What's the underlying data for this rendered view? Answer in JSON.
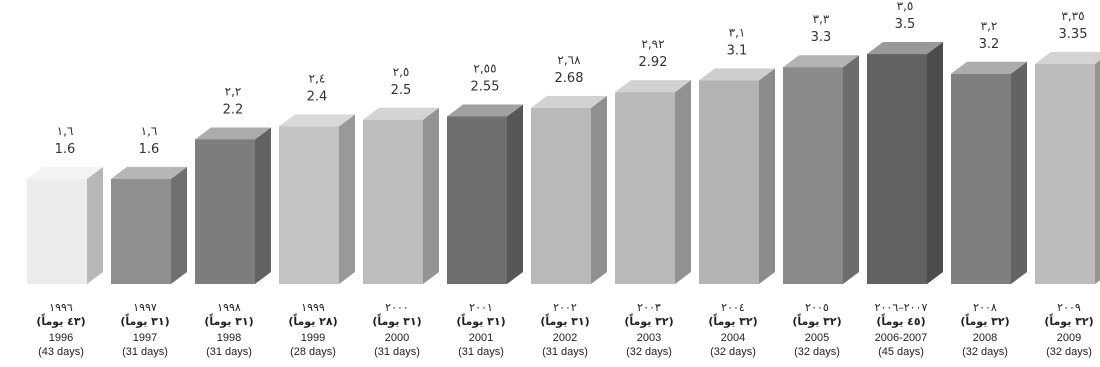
{
  "chart_data": {
    "type": "bar",
    "title": "",
    "xlabel": "",
    "ylabel": "",
    "ylim": [
      0,
      3.5
    ],
    "grid": false,
    "legend": "none",
    "style": "3d-bars",
    "colors": [
      "#ececec",
      "#8f8f8f",
      "#7d7d7d",
      "#c4c4c4",
      "#bdbdbd",
      "#6f6f6f",
      "#b9b9b9",
      "#bababa",
      "#b3b3b3",
      "#8a8a8a",
      "#626262",
      "#7f7f7f",
      "#bcbcbc"
    ],
    "bars": [
      {
        "value": 1.6,
        "value_label": "1.6",
        "value_label_ar": "١,٦",
        "year_ar": "١٩٩٦",
        "days_ar": "(٤٣ يوماً)",
        "year": "1996",
        "days": "(43 days)"
      },
      {
        "value": 1.6,
        "value_label": "1.6",
        "value_label_ar": "١,٦",
        "year_ar": "١٩٩٧",
        "days_ar": "(٣١ يوماً)",
        "year": "1997",
        "days": "(31 days)"
      },
      {
        "value": 2.2,
        "value_label": "2.2",
        "value_label_ar": "٢,٢",
        "year_ar": "١٩٩٨",
        "days_ar": "(٣١ يوماً)",
        "year": "1998",
        "days": "(31 days)"
      },
      {
        "value": 2.4,
        "value_label": "2.4",
        "value_label_ar": "٢,٤",
        "year_ar": "١٩٩٩",
        "days_ar": "(٢٨ يوماً)",
        "year": "1999",
        "days": "(28 days)"
      },
      {
        "value": 2.5,
        "value_label": "2.5",
        "value_label_ar": "٢,٥",
        "year_ar": "٢٠٠٠",
        "days_ar": "(٣١ يوماً)",
        "year": "2000",
        "days": "(31 days)"
      },
      {
        "value": 2.55,
        "value_label": "2.55",
        "value_label_ar": "٢,٥٥",
        "year_ar": "٢٠٠١",
        "days_ar": "(٣١ يوماً)",
        "year": "2001",
        "days": "(31 days)"
      },
      {
        "value": 2.68,
        "value_label": "2.68",
        "value_label_ar": "٢,٦٨",
        "year_ar": "٢٠٠٢",
        "days_ar": "(٣١ يوماً)",
        "year": "2002",
        "days": "(31 days)"
      },
      {
        "value": 2.92,
        "value_label": "2.92",
        "value_label_ar": "٢,٩٢",
        "year_ar": "٢٠٠٣",
        "days_ar": "(٣٢ يوماً)",
        "year": "2003",
        "days": "(32 days)"
      },
      {
        "value": 3.1,
        "value_label": "3.1",
        "value_label_ar": "٣,١",
        "year_ar": "٢٠٠٤",
        "days_ar": "(٣٢ يوماً)",
        "year": "2004",
        "days": "(32 days)"
      },
      {
        "value": 3.3,
        "value_label": "3.3",
        "value_label_ar": "٣,٣",
        "year_ar": "٢٠٠٥",
        "days_ar": "(٣٢ يوماً)",
        "year": "2005",
        "days": "(32 days)"
      },
      {
        "value": 3.5,
        "value_label": "3.5",
        "value_label_ar": "٣,٥",
        "year_ar": "٢٠٠٧–٢٠٠٦",
        "days_ar": "(٤٥ يوماً)",
        "year": "2006-2007",
        "days": "(45 days)"
      },
      {
        "value": 3.2,
        "value_label": "3.2",
        "value_label_ar": "٣,٢",
        "year_ar": "٢٠٠٨",
        "days_ar": "(٣٢ يوماً)",
        "year": "2008",
        "days": "(32 days)"
      },
      {
        "value": 3.35,
        "value_label": "3.35",
        "value_label_ar": "٣,٣٥",
        "year_ar": "٢٠٠٩",
        "days_ar": "(٣٢ يوماً)",
        "year": "2009",
        "days": "(32 days)"
      }
    ]
  }
}
